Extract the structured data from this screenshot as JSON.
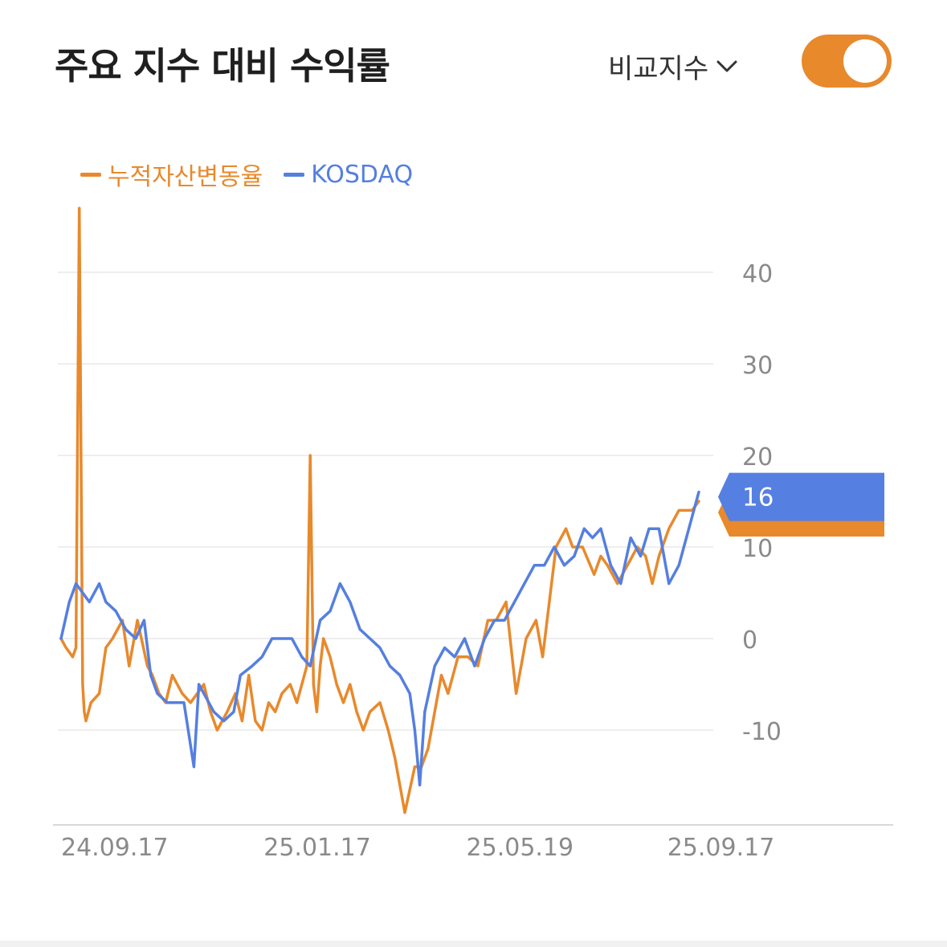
{
  "header": {
    "title": "주요 지수 대비 수익률",
    "compare_label": "비교지수",
    "compare_icon": "chevron-down-icon",
    "toggle_on": true
  },
  "colors": {
    "portfolio": "#e8892c",
    "index": "#557fe0",
    "grid": "#e8e8e8",
    "tick_text": "#8a8a8a"
  },
  "chart_data": {
    "type": "line",
    "legend_position": "top-left",
    "grid": true,
    "ylim": [
      -20,
      50
    ],
    "y_ticks": [
      40,
      30,
      20,
      10,
      0,
      -10
    ],
    "x_tick_labels": [
      "24.09.17",
      "25.01.17",
      "25.05.19",
      "25.09.17"
    ],
    "x_tick_dates": [
      "2024-09-17",
      "2025-01-17",
      "2025-05-19",
      "2025-09-17"
    ],
    "x_range": [
      "2024-09-17",
      "2025-10-06"
    ],
    "last_value_label": "16",
    "series": [
      {
        "name": "누적자산변동율",
        "dates": [
          "2024-09-17",
          "2024-09-20",
          "2024-09-24",
          "2024-09-26",
          "2024-09-28",
          "2024-09-30",
          "2024-10-01",
          "2024-10-02",
          "2024-10-05",
          "2024-10-10",
          "2024-10-14",
          "2024-10-18",
          "2024-10-24",
          "2024-10-28",
          "2024-11-02",
          "2024-11-08",
          "2024-11-11",
          "2024-11-15",
          "2024-11-19",
          "2024-11-23",
          "2024-11-29",
          "2024-12-04",
          "2024-12-08",
          "2024-12-12",
          "2024-12-16",
          "2024-12-20",
          "2024-12-26",
          "2024-12-31",
          "2025-01-04",
          "2025-01-08",
          "2025-01-12",
          "2025-01-16",
          "2025-01-20",
          "2025-01-24",
          "2025-01-28",
          "2025-02-02",
          "2025-02-06",
          "2025-02-12",
          "2025-02-14",
          "2025-02-16",
          "2025-02-18",
          "2025-02-20",
          "2025-02-22",
          "2025-02-26",
          "2025-03-02",
          "2025-03-06",
          "2025-03-10",
          "2025-03-14",
          "2025-03-18",
          "2025-03-22",
          "2025-03-28",
          "2025-04-02",
          "2025-04-06",
          "2025-04-12",
          "2025-04-18",
          "2025-04-22",
          "2025-04-26",
          "2025-04-30",
          "2025-05-04",
          "2025-05-08",
          "2025-05-14",
          "2025-05-20",
          "2025-05-26",
          "2025-06-01",
          "2025-06-06",
          "2025-06-12",
          "2025-06-18",
          "2025-06-24",
          "2025-06-30",
          "2025-07-04",
          "2025-07-08",
          "2025-07-12",
          "2025-07-18",
          "2025-07-22",
          "2025-07-28",
          "2025-08-04",
          "2025-08-08",
          "2025-08-12",
          "2025-08-18",
          "2025-08-24",
          "2025-08-30",
          "2025-09-04",
          "2025-09-08",
          "2025-09-12",
          "2025-09-18",
          "2025-09-24",
          "2025-10-02",
          "2025-10-06"
        ],
        "values": [
          0,
          -1,
          -2,
          -1,
          47,
          -5,
          -8,
          -9,
          -7,
          -6,
          -1,
          0,
          2,
          -3,
          2,
          -3,
          -4,
          -6,
          -7,
          -4,
          -6,
          -7,
          -6,
          -5,
          -8,
          -10,
          -8,
          -6,
          -9,
          -4,
          -9,
          -10,
          -7,
          -8,
          -6,
          -5,
          -7,
          -3,
          20,
          -5,
          -8,
          -3,
          0,
          -2,
          -5,
          -7,
          -5,
          -8,
          -10,
          -8,
          -7,
          -10,
          -13,
          -19,
          -14,
          -14,
          -12,
          -8,
          -4,
          -6,
          -2,
          -2,
          -3,
          2,
          2,
          4,
          -6,
          0,
          2,
          -2,
          4,
          10,
          12,
          10,
          10,
          7,
          9,
          8,
          6,
          8,
          10,
          9,
          6,
          9,
          12,
          14,
          14,
          15
        ]
      },
      {
        "name": "KOSDAQ",
        "dates": [
          "2024-09-17",
          "2024-09-22",
          "2024-09-26",
          "2024-09-30",
          "2024-10-04",
          "2024-10-10",
          "2024-10-14",
          "2024-10-20",
          "2024-10-26",
          "2024-11-01",
          "2024-11-06",
          "2024-11-10",
          "2024-11-14",
          "2024-11-20",
          "2024-11-24",
          "2024-11-30",
          "2024-12-06",
          "2024-12-09",
          "2024-12-12",
          "2024-12-18",
          "2024-12-24",
          "2024-12-30",
          "2025-01-03",
          "2025-01-10",
          "2025-01-16",
          "2025-01-22",
          "2025-01-28",
          "2025-02-03",
          "2025-02-09",
          "2025-02-14",
          "2025-02-20",
          "2025-02-26",
          "2025-03-04",
          "2025-03-10",
          "2025-03-16",
          "2025-03-22",
          "2025-03-28",
          "2025-04-03",
          "2025-04-09",
          "2025-04-15",
          "2025-04-18",
          "2025-04-21",
          "2025-04-24",
          "2025-04-30",
          "2025-05-06",
          "2025-05-12",
          "2025-05-18",
          "2025-05-24",
          "2025-05-30",
          "2025-06-05",
          "2025-06-11",
          "2025-06-17",
          "2025-06-23",
          "2025-06-29",
          "2025-07-05",
          "2025-07-11",
          "2025-07-17",
          "2025-07-23",
          "2025-07-29",
          "2025-08-03",
          "2025-08-08",
          "2025-08-14",
          "2025-08-20",
          "2025-08-26",
          "2025-09-01",
          "2025-09-06",
          "2025-09-12",
          "2025-09-18",
          "2025-09-24",
          "2025-09-30",
          "2025-10-06"
        ],
        "values": [
          0,
          4,
          6,
          5,
          4,
          6,
          4,
          3,
          1,
          0,
          2,
          -4,
          -6,
          -7,
          -7,
          -7,
          -14,
          -5,
          -6,
          -8,
          -9,
          -8,
          -4,
          -3,
          -2,
          0,
          0,
          0,
          -2,
          -3,
          2,
          3,
          6,
          4,
          1,
          0,
          -1,
          -3,
          -4,
          -6,
          -10,
          -16,
          -8,
          -3,
          -1,
          -2,
          0,
          -3,
          0,
          2,
          2,
          4,
          6,
          8,
          8,
          10,
          8,
          9,
          12,
          11,
          12,
          8,
          6,
          11,
          9,
          12,
          12,
          6,
          8,
          12,
          16
        ]
      }
    ]
  }
}
